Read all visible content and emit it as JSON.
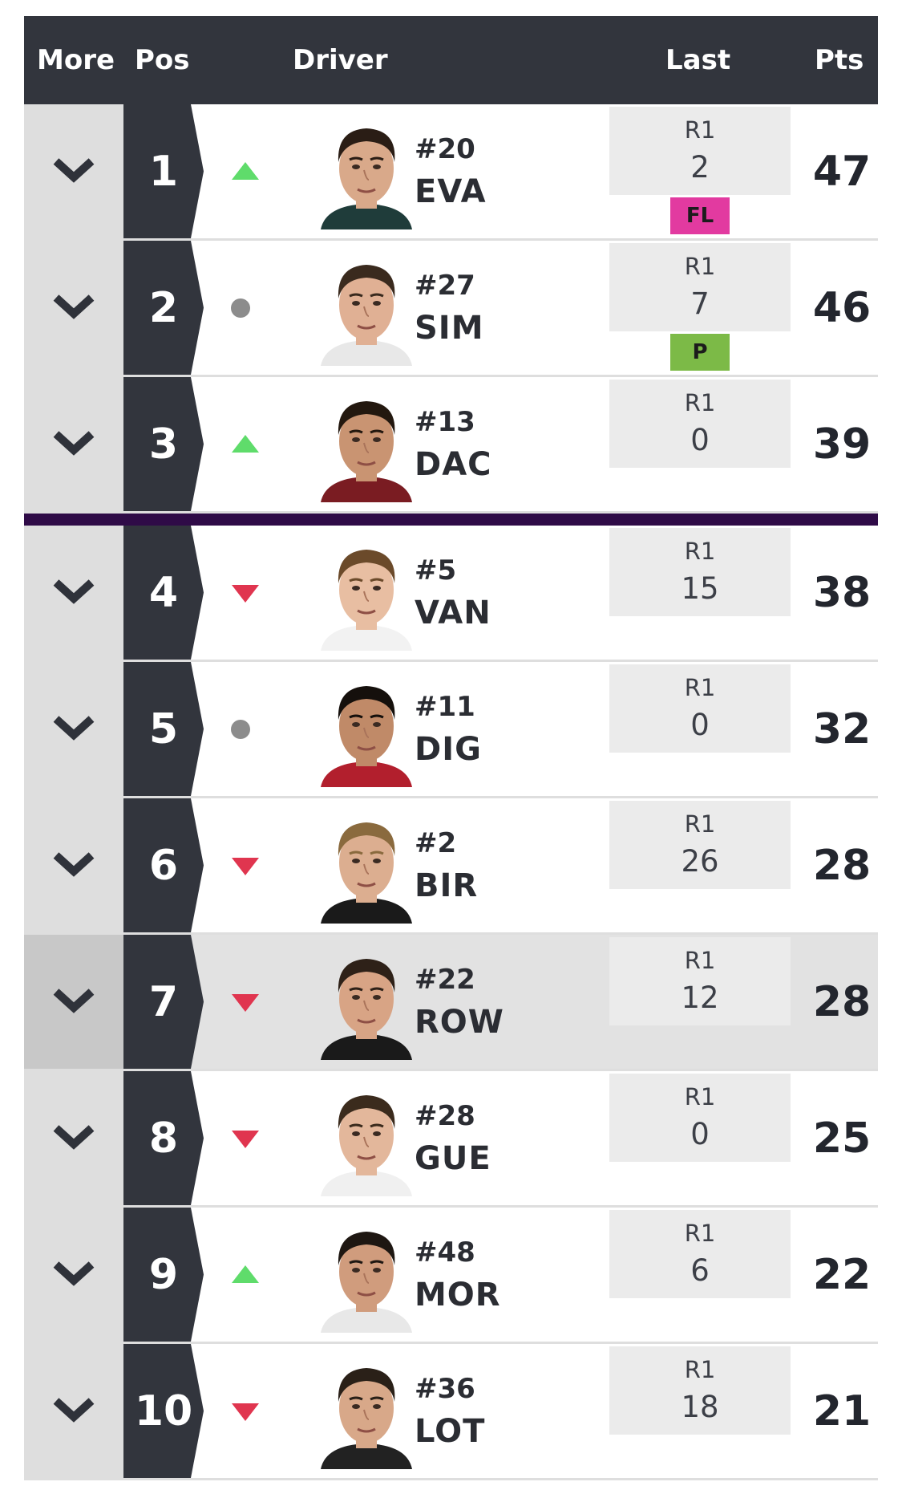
{
  "colors": {
    "header_bg": "#32353d",
    "pos_bg": "#32353d",
    "more_bg": "#dedede",
    "highlight_bg": "#e2e2e2",
    "divider": "#2f0b47",
    "trend_up": "#5fdc6b",
    "trend_down": "#e0354f",
    "trend_same": "#8c8c8c",
    "badge_fl": "#e23aa0",
    "badge_p": "#7cba47"
  },
  "header": {
    "more": "More",
    "pos": "Pos",
    "driver": "Driver",
    "last": "Last",
    "pts": "Pts"
  },
  "rows": [
    {
      "pos": "1",
      "trend": "up",
      "number": "#20",
      "code": "EVA",
      "round": "R1",
      "result": "2",
      "badge": "FL",
      "pts": "47",
      "highlighted": false
    },
    {
      "pos": "2",
      "trend": "same",
      "number": "#27",
      "code": "SIM",
      "round": "R1",
      "result": "7",
      "badge": "P",
      "pts": "46",
      "highlighted": false
    },
    {
      "pos": "3",
      "trend": "up",
      "number": "#13",
      "code": "DAC",
      "round": "R1",
      "result": "0",
      "badge": "",
      "pts": "39",
      "highlighted": false
    },
    {
      "pos": "4",
      "trend": "down",
      "number": "#5",
      "code": "VAN",
      "round": "R1",
      "result": "15",
      "badge": "",
      "pts": "38",
      "highlighted": false
    },
    {
      "pos": "5",
      "trend": "same",
      "number": "#11",
      "code": "DIG",
      "round": "R1",
      "result": "0",
      "badge": "",
      "pts": "32",
      "highlighted": false
    },
    {
      "pos": "6",
      "trend": "down",
      "number": "#2",
      "code": "BIR",
      "round": "R1",
      "result": "26",
      "badge": "",
      "pts": "28",
      "highlighted": false
    },
    {
      "pos": "7",
      "trend": "down",
      "number": "#22",
      "code": "ROW",
      "round": "R1",
      "result": "12",
      "badge": "",
      "pts": "28",
      "highlighted": true
    },
    {
      "pos": "8",
      "trend": "down",
      "number": "#28",
      "code": "GUE",
      "round": "R1",
      "result": "0",
      "badge": "",
      "pts": "25",
      "highlighted": false
    },
    {
      "pos": "9",
      "trend": "up",
      "number": "#48",
      "code": "MOR",
      "round": "R1",
      "result": "6",
      "badge": "",
      "pts": "22",
      "highlighted": false
    },
    {
      "pos": "10",
      "trend": "down",
      "number": "#36",
      "code": "LOT",
      "round": "R1",
      "result": "18",
      "badge": "",
      "pts": "21",
      "highlighted": false
    }
  ]
}
